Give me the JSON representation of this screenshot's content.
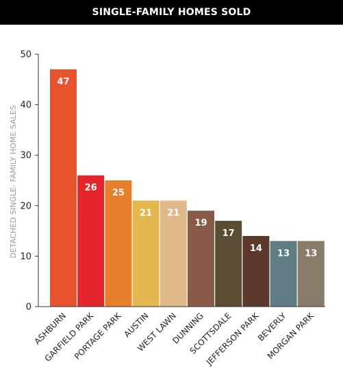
{
  "chart_data": {
    "type": "bar",
    "title": "SINGLE-FAMILY HOMES SOLD",
    "ylabel": "DETACHED SINGLE- FAMILY HOME SALES",
    "xlabel": "",
    "ylim": [
      0,
      50
    ],
    "yticks": [
      0,
      10,
      20,
      30,
      40,
      50
    ],
    "categories": [
      "ASHBURN",
      "GARFIELD PARK",
      "PORTAGE PARK",
      "AUSTIN",
      "WEST LAWN",
      "DUNNING",
      "SCOTTSDALE",
      "JEFFERSON PARK",
      "BEVERLY",
      "MORGAN PARK"
    ],
    "values": [
      47,
      26,
      25,
      21,
      21,
      19,
      17,
      14,
      13,
      13
    ],
    "colors": [
      "#e8532d",
      "#e3252c",
      "#e67e2a",
      "#e2b84e",
      "#e0b989",
      "#8a5a48",
      "#5a4d33",
      "#5b3a2c",
      "#607c84",
      "#8a7c6a"
    ],
    "grid": false,
    "legend": "none"
  }
}
